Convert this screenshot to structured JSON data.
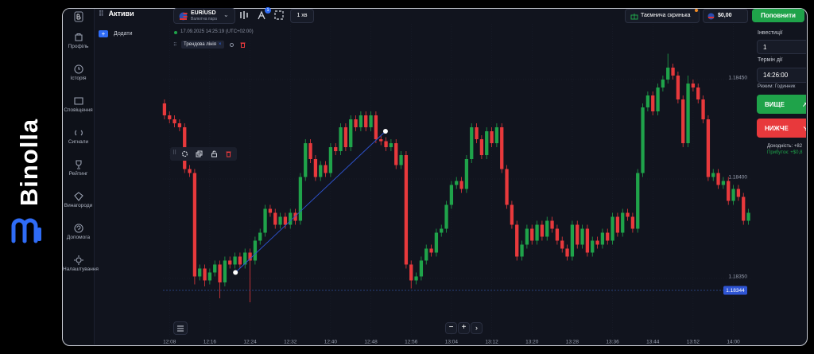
{
  "brand": "Binolla",
  "sidebar": {
    "items": [
      "Профіль",
      "Історія",
      "Сповіщення",
      "Сигнали",
      "Рейтинг",
      "Винагороди",
      "Допомога",
      "Налаштування"
    ]
  },
  "header": {
    "assets_title": "Активи",
    "asset": "EUR/USD",
    "asset_type": "Валютна пара",
    "badge": "1",
    "timeframe": "1 хв",
    "mystery_box": "Таємнича скринька",
    "balance": "$0,00",
    "deposit": "Поповнити"
  },
  "panel": {
    "add": "Додати"
  },
  "chart_info": {
    "datetime": "17.09.2025 14:25:19 (UTC+02:00)",
    "tool": "Трендова лінія"
  },
  "trade": {
    "investment_label": "Інвестиції",
    "investment": "1",
    "expiry_label": "Термін дії",
    "expiry": "14:26:00",
    "mode": "Режим: Годинник",
    "higher": "ВИЩЕ",
    "lower": "НИЖЧЕ",
    "payout": "Доходність: +82",
    "profit": "Прибуток: +$0,8"
  },
  "chart_data": {
    "type": "candlestick",
    "up_color": "#1fa34a",
    "down_color": "#e8393c",
    "grid": true,
    "xlim": [
      726.7,
      843.7
    ],
    "xticks": [
      {
        "value": 728,
        "label": "12:08"
      },
      {
        "value": 736,
        "label": "12:16"
      },
      {
        "value": 744,
        "label": "12:24"
      },
      {
        "value": 752,
        "label": "12:32"
      },
      {
        "value": 760,
        "label": "12:40"
      },
      {
        "value": 768,
        "label": "12:48"
      },
      {
        "value": 776,
        "label": "12:56"
      },
      {
        "value": 784,
        "label": "13:04"
      },
      {
        "value": 792,
        "label": "13:12"
      },
      {
        "value": 800,
        "label": "13:20"
      },
      {
        "value": 808,
        "label": "13:28"
      },
      {
        "value": 816,
        "label": "13:36"
      },
      {
        "value": 824,
        "label": "13:44"
      },
      {
        "value": 832,
        "label": "13:52"
      },
      {
        "value": 840,
        "label": "14:00"
      }
    ],
    "ylim": [
      1.1833,
      1.18466
    ],
    "yticks": [
      {
        "value": 1.1835,
        "label": "1.18350"
      },
      {
        "value": 1.184,
        "label": "1.18400"
      },
      {
        "value": 1.1845,
        "label": "1.18450"
      }
    ],
    "current_price": 1.18344,
    "trendline": [
      [
        741.1,
        1.18353
      ],
      [
        770.9,
        1.18424
      ]
    ],
    "x": [
      727,
      728,
      729,
      730,
      731,
      732,
      733,
      734,
      735,
      736,
      737,
      738,
      739,
      740,
      741,
      742,
      743,
      744,
      745,
      746,
      747,
      748,
      749,
      750,
      751,
      752,
      753,
      754,
      755,
      756,
      757,
      758,
      759,
      760,
      761,
      762,
      763,
      764,
      765,
      766,
      767,
      768,
      769,
      770,
      771,
      772,
      773,
      774,
      775,
      776,
      777,
      778,
      779,
      780,
      781,
      782,
      783,
      784,
      785,
      786,
      787,
      788,
      789,
      790,
      791,
      792,
      793,
      794,
      795,
      796,
      797,
      798,
      799,
      800,
      801,
      802,
      803,
      804,
      805,
      806,
      807,
      808,
      809,
      810,
      811,
      812,
      813,
      814,
      815,
      816,
      817,
      818,
      819,
      820,
      821,
      822,
      823,
      824,
      825,
      826,
      827,
      828,
      829,
      830,
      831,
      832,
      833,
      834,
      835,
      836,
      837,
      838,
      839,
      840,
      841,
      842,
      843
    ],
    "candles": [
      [
        1.18438,
        1.1844,
        1.1843,
        1.18432
      ],
      [
        1.18432,
        1.18434,
        1.18428,
        1.1843
      ],
      [
        1.1843,
        1.18432,
        1.18426,
        1.18428
      ],
      [
        1.18428,
        1.1843,
        1.18424,
        1.18426
      ],
      [
        1.18426,
        1.18428,
        1.18403,
        1.18405
      ],
      [
        1.18405,
        1.18407,
        1.18401,
        1.18403
      ],
      [
        1.18403,
        1.18405,
        1.18347,
        1.18351
      ],
      [
        1.18351,
        1.18357,
        1.18349,
        1.18355
      ],
      [
        1.18355,
        1.18357,
        1.18346,
        1.18349
      ],
      [
        1.18349,
        1.18355,
        1.18347,
        1.18353
      ],
      [
        1.18353,
        1.18359,
        1.18351,
        1.18357
      ],
      [
        1.18357,
        1.18359,
        1.1834,
        1.18348
      ],
      [
        1.18348,
        1.18361,
        1.18346,
        1.18359
      ],
      [
        1.18359,
        1.18361,
        1.18355,
        1.18357
      ],
      [
        1.18357,
        1.18363,
        1.18355,
        1.18361
      ],
      [
        1.18361,
        1.18363,
        1.18355,
        1.18357
      ],
      [
        1.18357,
        1.18365,
        1.18355,
        1.18363
      ],
      [
        1.18363,
        1.18365,
        1.18338,
        1.18359
      ],
      [
        1.18359,
        1.18371,
        1.18357,
        1.18369
      ],
      [
        1.18369,
        1.18375,
        1.18367,
        1.18373
      ],
      [
        1.18373,
        1.18387,
        1.18371,
        1.18385
      ],
      [
        1.18385,
        1.18387,
        1.18381,
        1.18383
      ],
      [
        1.18383,
        1.18385,
        1.18375,
        1.18377
      ],
      [
        1.18377,
        1.18383,
        1.18375,
        1.18381
      ],
      [
        1.18381,
        1.18383,
        1.18375,
        1.18377
      ],
      [
        1.18377,
        1.18385,
        1.18375,
        1.18383
      ],
      [
        1.18383,
        1.18385,
        1.18377,
        1.18379
      ],
      [
        1.18379,
        1.18403,
        1.18377,
        1.18401
      ],
      [
        1.18401,
        1.1842,
        1.18399,
        1.18418
      ],
      [
        1.18418,
        1.1842,
        1.18408,
        1.1841
      ],
      [
        1.1841,
        1.18412,
        1.18399,
        1.18401
      ],
      [
        1.18401,
        1.18409,
        1.18399,
        1.18407
      ],
      [
        1.18407,
        1.18409,
        1.18401,
        1.18403
      ],
      [
        1.18403,
        1.18418,
        1.18401,
        1.18416
      ],
      [
        1.18416,
        1.18418,
        1.18412,
        1.18414
      ],
      [
        1.18414,
        1.18428,
        1.18412,
        1.18426
      ],
      [
        1.18426,
        1.18428,
        1.18414,
        1.18416
      ],
      [
        1.18416,
        1.18432,
        1.18414,
        1.1843
      ],
      [
        1.1843,
        1.18432,
        1.18424,
        1.18426
      ],
      [
        1.18426,
        1.18434,
        1.18424,
        1.18432
      ],
      [
        1.18432,
        1.18434,
        1.18424,
        1.18426
      ],
      [
        1.18426,
        1.18434,
        1.18424,
        1.18432
      ],
      [
        1.18432,
        1.18434,
        1.18418,
        1.1842
      ],
      [
        1.1842,
        1.18422,
        1.18417,
        1.18419
      ],
      [
        1.18419,
        1.18421,
        1.18414,
        1.18416
      ],
      [
        1.18416,
        1.1842,
        1.18414,
        1.18418
      ],
      [
        1.18418,
        1.1842,
        1.18405,
        1.18407
      ],
      [
        1.18407,
        1.18414,
        1.18405,
        1.18412
      ],
      [
        1.18412,
        1.18414,
        1.18355,
        1.18357
      ],
      [
        1.18357,
        1.18359,
        1.18345,
        1.18349
      ],
      [
        1.18349,
        1.18353,
        1.18347,
        1.18351
      ],
      [
        1.18351,
        1.18361,
        1.18349,
        1.18359
      ],
      [
        1.18359,
        1.18367,
        1.18357,
        1.18365
      ],
      [
        1.18365,
        1.18367,
        1.18361,
        1.18363
      ],
      [
        1.18363,
        1.18375,
        1.18361,
        1.18373
      ],
      [
        1.18373,
        1.18377,
        1.18371,
        1.18375
      ],
      [
        1.18375,
        1.18389,
        1.18373,
        1.18387
      ],
      [
        1.18387,
        1.18399,
        1.18385,
        1.18397
      ],
      [
        1.18397,
        1.18401,
        1.18395,
        1.18399
      ],
      [
        1.18399,
        1.18401,
        1.18393,
        1.18395
      ],
      [
        1.18395,
        1.18412,
        1.18393,
        1.1841
      ],
      [
        1.1841,
        1.18428,
        1.18408,
        1.18426
      ],
      [
        1.18426,
        1.18428,
        1.18418,
        1.1842
      ],
      [
        1.1842,
        1.18422,
        1.1841,
        1.18412
      ],
      [
        1.18412,
        1.18426,
        1.1841,
        1.18424
      ],
      [
        1.18424,
        1.18426,
        1.18416,
        1.18418
      ],
      [
        1.18418,
        1.18428,
        1.18416,
        1.18426
      ],
      [
        1.18426,
        1.18428,
        1.18403,
        1.18405
      ],
      [
        1.18405,
        1.18407,
        1.18385,
        1.18387
      ],
      [
        1.18387,
        1.18389,
        1.18375,
        1.18377
      ],
      [
        1.18377,
        1.18379,
        1.18359,
        1.18361
      ],
      [
        1.18361,
        1.18369,
        1.18359,
        1.18367
      ],
      [
        1.18367,
        1.18377,
        1.18365,
        1.18375
      ],
      [
        1.18375,
        1.18377,
        1.18367,
        1.18369
      ],
      [
        1.18369,
        1.18379,
        1.18367,
        1.18377
      ],
      [
        1.18377,
        1.18379,
        1.18369,
        1.18371
      ],
      [
        1.18371,
        1.18381,
        1.18369,
        1.18379
      ],
      [
        1.18379,
        1.18381,
        1.18373,
        1.18375
      ],
      [
        1.18375,
        1.18377,
        1.18367,
        1.18369
      ],
      [
        1.18369,
        1.18371,
        1.18363,
        1.18365
      ],
      [
        1.18365,
        1.18367,
        1.18359,
        1.18361
      ],
      [
        1.18361,
        1.18379,
        1.18359,
        1.18377
      ],
      [
        1.18377,
        1.18379,
        1.18365,
        1.18367
      ],
      [
        1.18367,
        1.18377,
        1.18365,
        1.18375
      ],
      [
        1.18375,
        1.18377,
        1.18361,
        1.18363
      ],
      [
        1.18363,
        1.18371,
        1.18361,
        1.18369
      ],
      [
        1.18369,
        1.18371,
        1.18365,
        1.18367
      ],
      [
        1.18367,
        1.18375,
        1.18365,
        1.18373
      ],
      [
        1.18373,
        1.18375,
        1.18367,
        1.18369
      ],
      [
        1.18369,
        1.18383,
        1.18367,
        1.18381
      ],
      [
        1.18381,
        1.18383,
        1.18371,
        1.18373
      ],
      [
        1.18373,
        1.18385,
        1.18371,
        1.18383
      ],
      [
        1.18383,
        1.18385,
        1.18379,
        1.18381
      ],
      [
        1.18381,
        1.18383,
        1.18373,
        1.18375
      ],
      [
        1.18375,
        1.18405,
        1.18373,
        1.18403
      ],
      [
        1.18403,
        1.18438,
        1.18401,
        1.18436
      ],
      [
        1.18436,
        1.18444,
        1.18434,
        1.18442
      ],
      [
        1.18442,
        1.18444,
        1.18432,
        1.18434
      ],
      [
        1.18434,
        1.18448,
        1.18432,
        1.18446
      ],
      [
        1.18446,
        1.18452,
        1.18444,
        1.1845
      ],
      [
        1.1845,
        1.18463,
        1.18448,
        1.18456
      ],
      [
        1.18456,
        1.18458,
        1.1845,
        1.18452
      ],
      [
        1.18452,
        1.18454,
        1.18438,
        1.1844
      ],
      [
        1.1844,
        1.18442,
        1.18416,
        1.18418
      ],
      [
        1.18418,
        1.18452,
        1.18416,
        1.18448
      ],
      [
        1.18448,
        1.1845,
        1.18444,
        1.18446
      ],
      [
        1.18446,
        1.18448,
        1.18438,
        1.1844
      ],
      [
        1.1844,
        1.18442,
        1.18428,
        1.1843
      ],
      [
        1.1843,
        1.18432,
        1.18399,
        1.18401
      ],
      [
        1.18401,
        1.18405,
        1.18399,
        1.18403
      ],
      [
        1.18403,
        1.18405,
        1.18395,
        1.18397
      ],
      [
        1.18397,
        1.18401,
        1.18395,
        1.18399
      ],
      [
        1.18399,
        1.18401,
        1.18387,
        1.18389
      ],
      [
        1.18389,
        1.18397,
        1.18387,
        1.18395
      ],
      [
        1.18395,
        1.18397,
        1.18389,
        1.18391
      ],
      [
        1.18391,
        1.18393,
        1.18377,
        1.18379
      ],
      [
        1.18379,
        1.18385,
        1.18377,
        1.18383
      ]
    ]
  }
}
